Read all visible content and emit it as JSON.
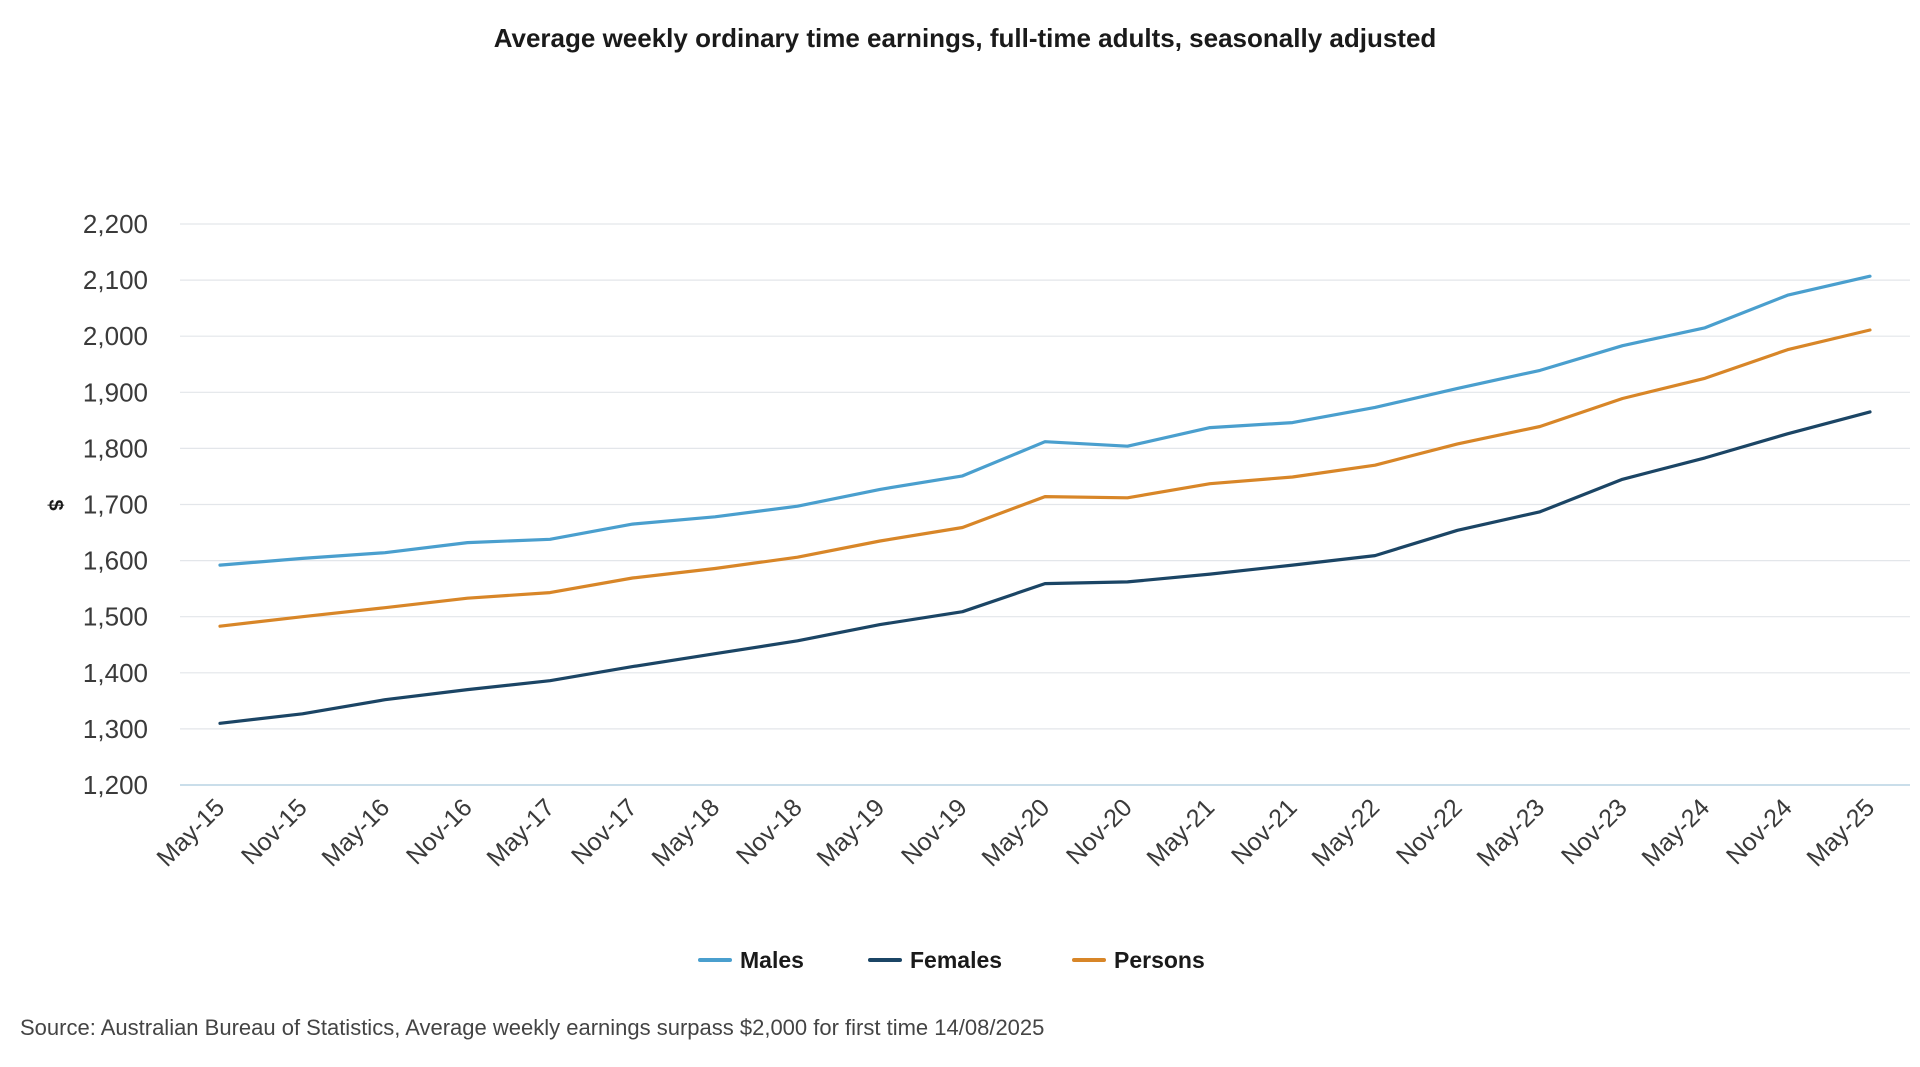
{
  "chart_data": {
    "type": "line",
    "title": "Average weekly ordinary time earnings, full-time adults, seasonally adjusted",
    "xlabel": "",
    "ylabel": "$",
    "ylim": [
      1200,
      2200
    ],
    "yticks": [
      "1,200",
      "1,300",
      "1,400",
      "1,500",
      "1,600",
      "1,700",
      "1,800",
      "1,900",
      "2,000",
      "2,100",
      "2,200"
    ],
    "grid": true,
    "legend_position": "bottom",
    "categories": [
      "May-15",
      "Nov-15",
      "May-16",
      "Nov-16",
      "May-17",
      "Nov-17",
      "May-18",
      "Nov-18",
      "May-19",
      "Nov-19",
      "May-20",
      "Nov-20",
      "May-21",
      "Nov-21",
      "May-22",
      "Nov-22",
      "May-23",
      "Nov-23",
      "May-24",
      "Nov-24",
      "May-25"
    ],
    "series": [
      {
        "name": "Males",
        "color": "#4a9fce",
        "values": [
          1592,
          1604,
          1614,
          1632,
          1638,
          1665,
          1678,
          1697,
          1727,
          1751,
          1812,
          1804,
          1837,
          1846,
          1873,
          1907,
          1939,
          1983,
          2015,
          2073,
          2107
        ]
      },
      {
        "name": "Females",
        "color": "#1b4565",
        "values": [
          1310,
          1327,
          1352,
          1370,
          1386,
          1411,
          1434,
          1457,
          1486,
          1509,
          1559,
          1562,
          1576,
          1592,
          1609,
          1654,
          1687,
          1745,
          1783,
          1826,
          1865
        ]
      },
      {
        "name": "Persons",
        "color": "#d88628",
        "values": [
          1483,
          1500,
          1516,
          1533,
          1543,
          1569,
          1586,
          1606,
          1635,
          1659,
          1714,
          1712,
          1737,
          1749,
          1770,
          1808,
          1839,
          1889,
          1925,
          1976,
          2011
        ]
      }
    ]
  },
  "source_text": "Source: Australian Bureau of Statistics, Average weekly earnings surpass $2,000 for first time  14/08/2025"
}
